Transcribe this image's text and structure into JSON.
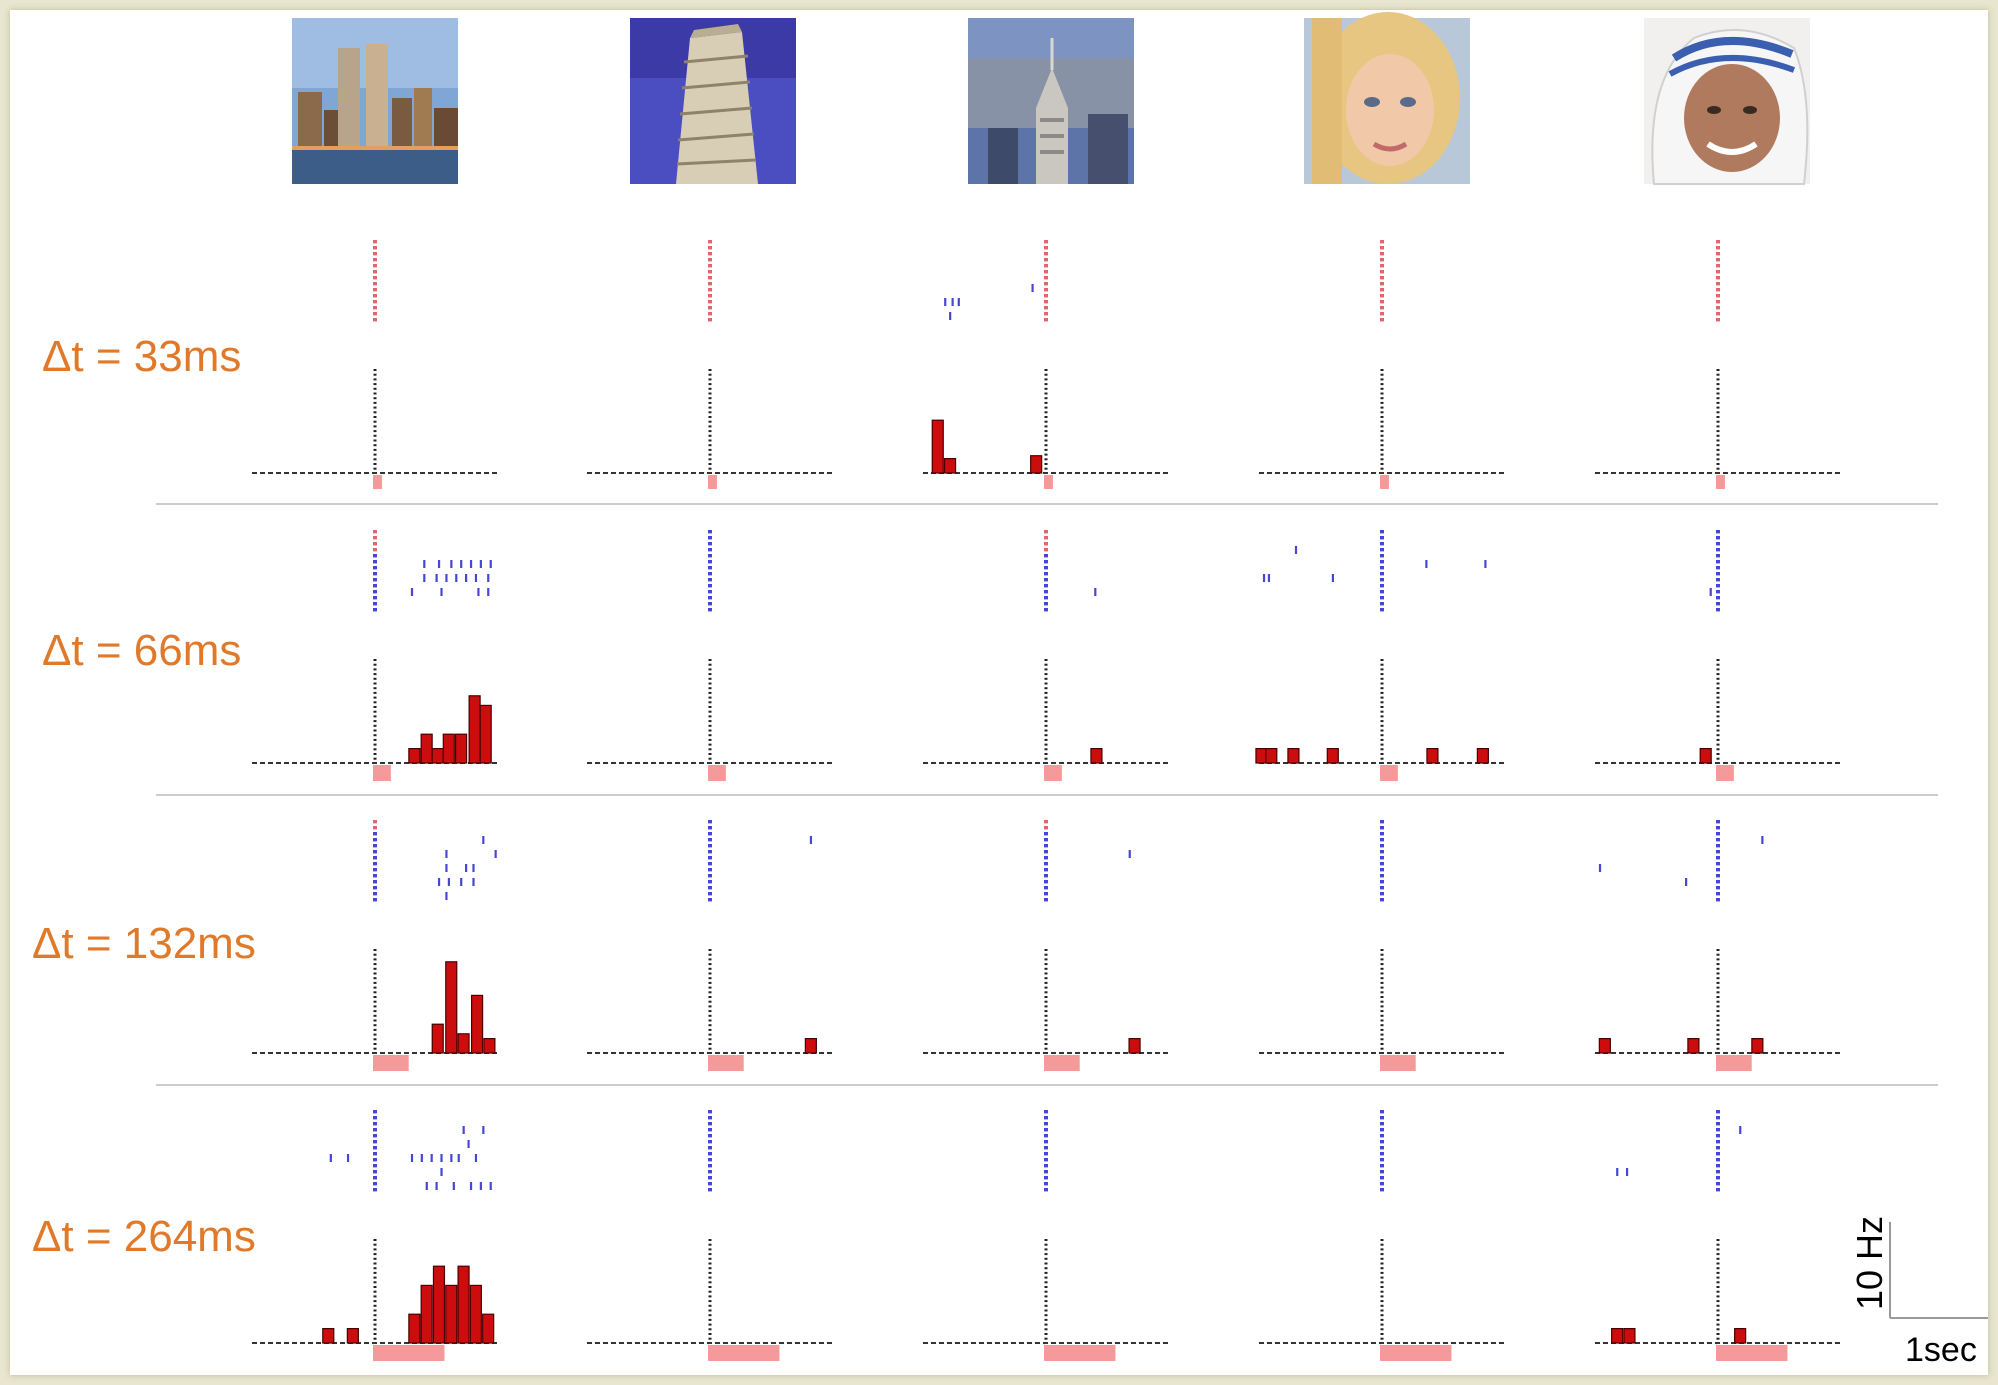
{
  "figure": {
    "row_labels": [
      "Δt = 33ms",
      "Δt = 66ms",
      "Δt = 132ms",
      "Δt = 264ms"
    ],
    "label_color": "#e07a2a",
    "stimuli": [
      {
        "name": "twin-towers",
        "icon": "twin-towers-skyline-photo"
      },
      {
        "name": "leaning-tower-of-pisa",
        "icon": "pisa-tower-photo"
      },
      {
        "name": "chrysler-building",
        "icon": "chrysler-building-photo"
      },
      {
        "name": "woman-face",
        "icon": "woman-face-photo"
      },
      {
        "name": "mother-teresa",
        "icon": "mother-teresa-face-photo"
      }
    ],
    "scale_bar": {
      "y_label": "10 Hz",
      "x_label": "1sec"
    },
    "colors": {
      "bar_fill": "#cc0d0d",
      "bar_edge": "#4a0000",
      "raster_blue": "#4747d6",
      "raster_red": "#e0666a",
      "stim_marker": "#f59a9a",
      "divider": "#bbbbbb"
    }
  },
  "chart_data": {
    "type": "bar",
    "description_units": {
      "x": "s",
      "y": "Hz"
    },
    "xlim": [
      -1.0,
      1.0
    ],
    "grid": false,
    "rows": [
      {
        "label": "Δt = 33ms",
        "stim_duration_s": 0.033,
        "columns": [
          {
            "raster": [],
            "bars": []
          },
          {
            "raster": [],
            "bars": []
          },
          {
            "raster": [
              [
                -0.82,
                2
              ],
              [
                -0.76,
                2
              ],
              [
                -0.71,
                2
              ],
              [
                -0.78,
                3
              ],
              [
                -0.11,
                1
              ]
            ],
            "bars": [
              [
                -0.88,
                5.5
              ],
              [
                -0.78,
                1.5
              ],
              [
                -0.08,
                1.8
              ]
            ]
          },
          {
            "raster": [],
            "bars": []
          },
          {
            "raster": [],
            "bars": []
          }
        ]
      },
      {
        "label": "Δt = 66ms",
        "stim_duration_s": 0.066,
        "columns": [
          {
            "raster": [
              [
                0.4,
                0
              ],
              [
                0.52,
                0
              ],
              [
                0.62,
                0
              ],
              [
                0.7,
                0
              ],
              [
                0.78,
                0
              ],
              [
                0.86,
                0
              ],
              [
                0.94,
                0
              ],
              [
                0.4,
                1
              ],
              [
                0.5,
                1
              ],
              [
                0.58,
                1
              ],
              [
                0.66,
                1
              ],
              [
                0.74,
                1
              ],
              [
                0.82,
                1
              ],
              [
                0.92,
                1
              ],
              [
                0.3,
                2
              ],
              [
                0.54,
                2
              ],
              [
                0.84,
                2
              ],
              [
                0.92,
                2
              ]
            ],
            "bars": [
              [
                0.32,
                1.5
              ],
              [
                0.42,
                3.0
              ],
              [
                0.51,
                1.5
              ],
              [
                0.6,
                3.0
              ],
              [
                0.7,
                3.0
              ],
              [
                0.81,
                7.0
              ],
              [
                0.9,
                6.0
              ]
            ]
          },
          {
            "raster": [],
            "bars": []
          },
          {
            "raster": [
              [
                0.4,
                2
              ]
            ],
            "bars": [
              [
                0.41,
                1.5
              ]
            ]
          },
          {
            "raster": [
              [
                -0.7,
                -1
              ],
              [
                -0.96,
                1
              ],
              [
                -0.92,
                1
              ],
              [
                -0.4,
                1
              ],
              [
                0.36,
                0
              ],
              [
                0.84,
                0
              ]
            ],
            "bars": [
              [
                -0.98,
                1.5
              ],
              [
                -0.9,
                1.5
              ],
              [
                -0.72,
                1.5
              ],
              [
                -0.4,
                1.5
              ],
              [
                0.41,
                1.5
              ],
              [
                0.82,
                1.5
              ]
            ]
          },
          {
            "raster": [
              [
                -0.06,
                2
              ]
            ],
            "bars": [
              [
                -0.1,
                1.5
              ]
            ]
          }
        ]
      },
      {
        "label": "Δt = 132ms",
        "stim_duration_s": 0.132,
        "columns": [
          {
            "raster": [
              [
                0.88,
                -1
              ],
              [
                0.98,
                0
              ],
              [
                0.58,
                0
              ],
              [
                0.74,
                1
              ],
              [
                0.8,
                1
              ],
              [
                0.58,
                1
              ],
              [
                0.52,
                2
              ],
              [
                0.6,
                2
              ],
              [
                0.7,
                2
              ],
              [
                0.8,
                2
              ],
              [
                0.58,
                3
              ]
            ],
            "bars": [
              [
                0.51,
                3.0
              ],
              [
                0.62,
                9.5
              ],
              [
                0.72,
                2.0
              ],
              [
                0.83,
                6.0
              ],
              [
                0.93,
                1.5
              ]
            ]
          },
          {
            "raster": [
              [
                0.82,
                -1
              ]
            ],
            "bars": [
              [
                0.82,
                1.5
              ]
            ]
          },
          {
            "raster": [
              [
                0.68,
                0
              ]
            ],
            "bars": [
              [
                0.72,
                1.5
              ]
            ]
          },
          {
            "raster": [],
            "bars": []
          },
          {
            "raster": [
              [
                0.36,
                -1
              ],
              [
                -0.96,
                1
              ],
              [
                -0.26,
                2
              ]
            ],
            "bars": [
              [
                -0.92,
                1.5
              ],
              [
                -0.2,
                1.5
              ],
              [
                0.32,
                1.5
              ]
            ]
          }
        ]
      },
      {
        "label": "Δt = 264ms",
        "stim_duration_s": 0.264,
        "columns": [
          {
            "raster": [
              [
                0.72,
                -1
              ],
              [
                0.88,
                -1
              ],
              [
                0.76,
                0
              ],
              [
                0.82,
                1
              ],
              [
                -0.36,
                1
              ],
              [
                -0.22,
                1
              ],
              [
                0.3,
                1
              ],
              [
                0.38,
                1
              ],
              [
                0.46,
                1
              ],
              [
                0.54,
                1
              ],
              [
                0.62,
                1
              ],
              [
                0.68,
                1
              ],
              [
                0.54,
                2
              ],
              [
                0.42,
                3
              ],
              [
                0.5,
                3
              ],
              [
                0.64,
                3
              ],
              [
                0.78,
                3
              ],
              [
                0.86,
                3
              ],
              [
                0.94,
                3
              ]
            ],
            "bars": [
              [
                -0.38,
                1.5
              ],
              [
                -0.18,
                1.5
              ],
              [
                0.32,
                3.0
              ],
              [
                0.42,
                6.0
              ],
              [
                0.52,
                8.0
              ],
              [
                0.62,
                6.0
              ],
              [
                0.72,
                8.0
              ],
              [
                0.82,
                6.0
              ],
              [
                0.92,
                3.0
              ]
            ]
          },
          {
            "raster": [],
            "bars": []
          },
          {
            "raster": [],
            "bars": []
          },
          {
            "raster": [],
            "bars": []
          },
          {
            "raster": [
              [
                0.18,
                -1
              ],
              [
                -0.82,
                2
              ],
              [
                -0.74,
                2
              ]
            ],
            "bars": [
              [
                -0.82,
                1.5
              ],
              [
                -0.72,
                1.5
              ],
              [
                0.18,
                1.5
              ]
            ]
          }
        ]
      }
    ]
  }
}
